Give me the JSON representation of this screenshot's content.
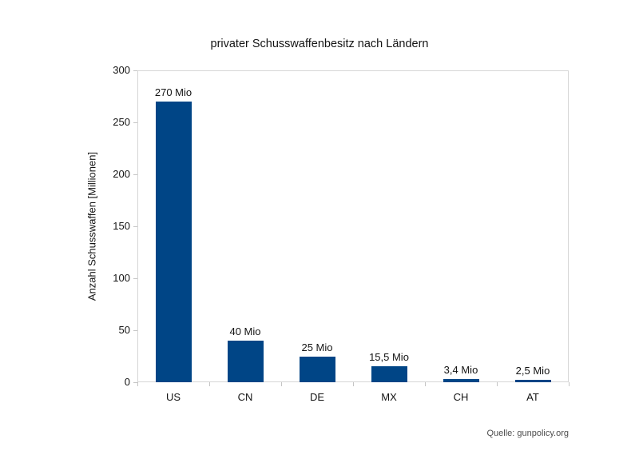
{
  "chart_data": {
    "type": "bar",
    "title": "privater Schusswaffenbesitz nach Ländern",
    "categories": [
      "US",
      "CN",
      "DE",
      "MX",
      "CH",
      "AT"
    ],
    "values": [
      270,
      40,
      25,
      15.5,
      3.4,
      2.5
    ],
    "value_labels": [
      "270 Mio",
      "40 Mio",
      "25 Mio",
      "15,5 Mio",
      "3,4 Mio",
      "2,5 Mio"
    ],
    "xlabel": "",
    "ylabel": "Anzahl Schusswaffen [Millionen]",
    "ylim": [
      0,
      300
    ],
    "yticks": [
      0,
      50,
      100,
      150,
      200,
      250,
      300
    ],
    "grid": false,
    "legend": "none",
    "bar_color": "#004586",
    "source": "Quelle: gunpolicy.org"
  }
}
